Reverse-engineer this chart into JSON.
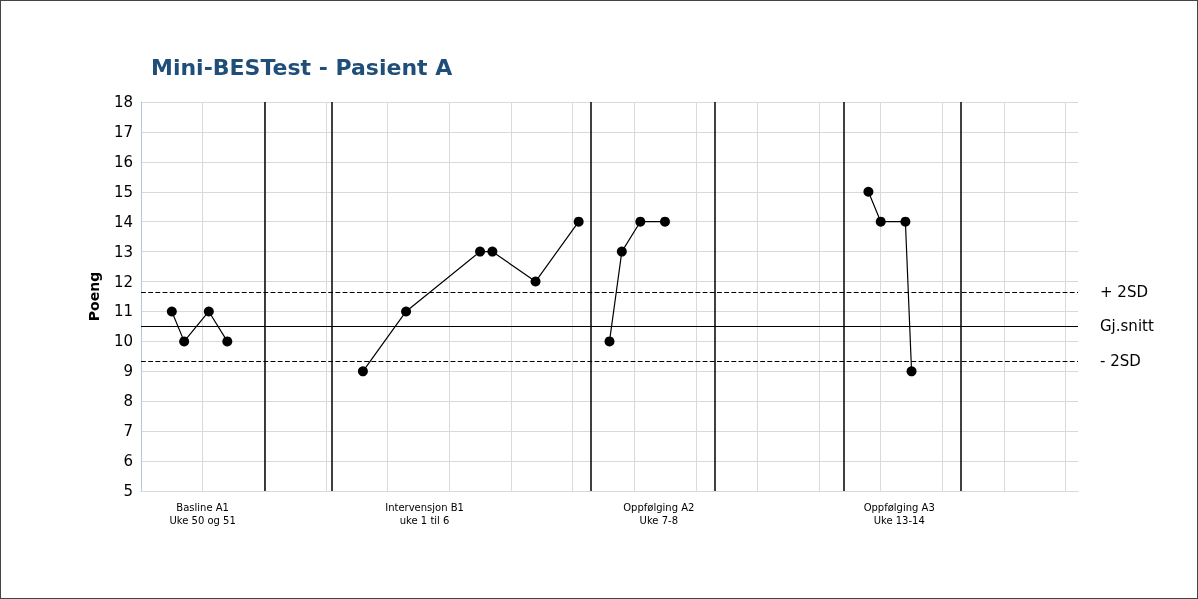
{
  "chart_data": {
    "type": "line",
    "title": "Mini-BESTest - Pasient A",
    "ylabel": "Poeng",
    "categories": [
      null,
      null,
      null,
      null,
      null,
      null,
      null,
      null,
      null,
      null,
      "Basline A1\nUke 50 og 51",
      null,
      null,
      null,
      null,
      null,
      null,
      null,
      null,
      null,
      null,
      null,
      null,
      null,
      null,
      null,
      null,
      null,
      null,
      null,
      null,
      null,
      null,
      null,
      null,
      null,
      null,
      null,
      null,
      null,
      null,
      null,
      null,
      null,
      null,
      null,
      "Intervensjon B1\nuke 1 til 6",
      null,
      null,
      null,
      null,
      null,
      null,
      null,
      null,
      null,
      null,
      null,
      null,
      null,
      null,
      null,
      null,
      null,
      null,
      null,
      null,
      null,
      null,
      null,
      null,
      null,
      null,
      null,
      null,
      null,
      null,
      null,
      null,
      null,
      null,
      null,
      null,
      null,
      "Oppfølging A2\nUke 7-8",
      null,
      null,
      null,
      null,
      null,
      null,
      null,
      null,
      null,
      null,
      null,
      null,
      null,
      null,
      null,
      null,
      null,
      null,
      null,
      null,
      null,
      null,
      null,
      null,
      null,
      null,
      null,
      null,
      null,
      null,
      null,
      null,
      null,
      null,
      null,
      null,
      null,
      null,
      "Oppfølging A3\nUke 13-14",
      null,
      null,
      null,
      null,
      null,
      null,
      null,
      null,
      null,
      null,
      null,
      null,
      null,
      null,
      null,
      null,
      null,
      null,
      null,
      null,
      null,
      null,
      null,
      null,
      null,
      null,
      null,
      null,
      null
    ],
    "ylim": [
      5,
      18
    ],
    "yticks": [
      5,
      6,
      7,
      8,
      9,
      10,
      11,
      12,
      13,
      14,
      15,
      16,
      17,
      18
    ],
    "grid": true,
    "marker": "circle",
    "line_style": "solid",
    "series": [
      {
        "color": "#000000",
        "values": [
          null,
          null,
          null,
          null,
          null,
          11,
          null,
          10,
          null,
          null,
          null,
          11,
          null,
          null,
          10,
          null,
          null,
          null,
          null,
          null,
          null,
          null,
          null,
          null,
          null,
          null,
          null,
          null,
          null,
          null,
          null,
          null,
          null,
          null,
          null,
          null,
          null,
          null,
          null,
          null,
          null,
          null,
          null,
          null,
          null,
          null,
          null,
          null,
          null,
          null,
          null,
          null,
          null,
          null,
          null,
          null,
          null,
          null,
          null,
          null,
          null,
          null,
          null,
          null,
          null,
          null,
          null,
          null,
          null,
          null,
          null,
          null,
          null,
          null,
          null,
          null,
          null,
          null,
          null,
          null,
          null,
          null,
          null,
          null,
          null,
          null,
          null,
          null,
          null,
          null,
          null,
          null,
          null,
          null,
          null,
          null,
          null,
          null,
          null,
          null,
          null,
          null,
          null,
          null,
          null,
          null,
          null,
          null,
          null,
          null,
          null,
          null,
          null,
          null,
          null,
          null,
          null,
          null,
          null,
          null,
          null,
          null,
          null,
          null,
          null,
          null,
          null,
          null,
          null,
          null,
          null,
          null,
          null,
          null,
          null,
          null,
          null,
          null,
          null,
          null,
          null,
          null,
          null,
          null,
          null,
          null,
          null,
          null,
          null,
          null,
          null,
          null,
          null
        ]
      },
      {
        "color": "#000000",
        "values": [
          null,
          null,
          null,
          null,
          null,
          null,
          null,
          null,
          null,
          null,
          null,
          null,
          null,
          null,
          null,
          null,
          null,
          null,
          null,
          null,
          null,
          null,
          null,
          null,
          null,
          null,
          null,
          null,
          null,
          null,
          null,
          null,
          null,
          null,
          null,
          null,
          9,
          null,
          null,
          null,
          null,
          null,
          null,
          11,
          null,
          null,
          null,
          null,
          null,
          null,
          null,
          null,
          null,
          null,
          null,
          13,
          null,
          13,
          null,
          null,
          null,
          null,
          null,
          null,
          12,
          null,
          null,
          null,
          null,
          null,
          null,
          14,
          null,
          null,
          null,
          null,
          null,
          null,
          null,
          null,
          null,
          null,
          null,
          null,
          null,
          null,
          null,
          null,
          null,
          null,
          null,
          null,
          null,
          null,
          null,
          null,
          null,
          null,
          null,
          null,
          null,
          null,
          null,
          null,
          null,
          null,
          null,
          null,
          null,
          null,
          null,
          null,
          null,
          null,
          null,
          null,
          null,
          null,
          null,
          null,
          null,
          null,
          null,
          null,
          null,
          null,
          null,
          null,
          null,
          null,
          null,
          null,
          null,
          null,
          null,
          null,
          null,
          null,
          null,
          null,
          null,
          null,
          null,
          null,
          null,
          null,
          null,
          null,
          null,
          null,
          null,
          null,
          null
        ]
      },
      {
        "color": "#000000",
        "values": [
          null,
          null,
          null,
          null,
          null,
          null,
          null,
          null,
          null,
          null,
          null,
          null,
          null,
          null,
          null,
          null,
          null,
          null,
          null,
          null,
          null,
          null,
          null,
          null,
          null,
          null,
          null,
          null,
          null,
          null,
          null,
          null,
          null,
          null,
          null,
          null,
          null,
          null,
          null,
          null,
          null,
          null,
          null,
          null,
          null,
          null,
          null,
          null,
          null,
          null,
          null,
          null,
          null,
          null,
          null,
          null,
          null,
          null,
          null,
          null,
          null,
          null,
          null,
          null,
          null,
          null,
          null,
          null,
          null,
          null,
          null,
          null,
          null,
          null,
          null,
          null,
          10,
          null,
          13,
          null,
          null,
          14,
          null,
          null,
          null,
          14,
          null,
          null,
          null,
          null,
          null,
          null,
          null,
          null,
          null,
          null,
          null,
          null,
          null,
          null,
          null,
          null,
          null,
          null,
          null,
          null,
          null,
          null,
          null,
          null,
          null,
          null,
          null,
          null,
          null,
          null,
          null,
          null,
          null,
          null,
          null,
          null,
          null,
          null,
          null,
          null,
          null,
          null,
          null,
          null,
          null,
          null,
          null,
          null,
          null,
          null,
          null,
          null,
          null,
          null,
          null,
          null,
          null,
          null,
          null,
          null,
          null,
          null,
          null,
          null,
          null,
          null,
          null
        ]
      },
      {
        "color": "#000000",
        "values": [
          null,
          null,
          null,
          null,
          null,
          null,
          null,
          null,
          null,
          null,
          null,
          null,
          null,
          null,
          null,
          null,
          null,
          null,
          null,
          null,
          null,
          null,
          null,
          null,
          null,
          null,
          null,
          null,
          null,
          null,
          null,
          null,
          null,
          null,
          null,
          null,
          null,
          null,
          null,
          null,
          null,
          null,
          null,
          null,
          null,
          null,
          null,
          null,
          null,
          null,
          null,
          null,
          null,
          null,
          null,
          null,
          null,
          null,
          null,
          null,
          null,
          null,
          null,
          null,
          null,
          null,
          null,
          null,
          null,
          null,
          null,
          null,
          null,
          null,
          null,
          null,
          null,
          null,
          null,
          null,
          null,
          null,
          null,
          null,
          null,
          null,
          null,
          null,
          null,
          null,
          null,
          null,
          null,
          null,
          null,
          null,
          null,
          null,
          null,
          null,
          null,
          null,
          null,
          null,
          null,
          null,
          null,
          null,
          null,
          null,
          null,
          null,
          null,
          null,
          null,
          null,
          null,
          null,
          15,
          null,
          14,
          null,
          null,
          null,
          14,
          9,
          null,
          null,
          null,
          null,
          null,
          null,
          null,
          null,
          null,
          null,
          null,
          null,
          null,
          null,
          null,
          null,
          null,
          null,
          null,
          null,
          null,
          null,
          null,
          null,
          null,
          null,
          null
        ]
      }
    ],
    "ref_lines": [
      {
        "axis": "y",
        "value": 11.65,
        "label": "+ 2SD",
        "color": "#000000",
        "line_style": "dashed"
      },
      {
        "axis": "y",
        "value": 10.5,
        "label": "Gj.snitt",
        "color": "#000000",
        "line_style": "solid"
      },
      {
        "axis": "y",
        "value": 9.33,
        "label": "- 2SD",
        "color": "#000000",
        "line_style": "dashed"
      }
    ]
  }
}
